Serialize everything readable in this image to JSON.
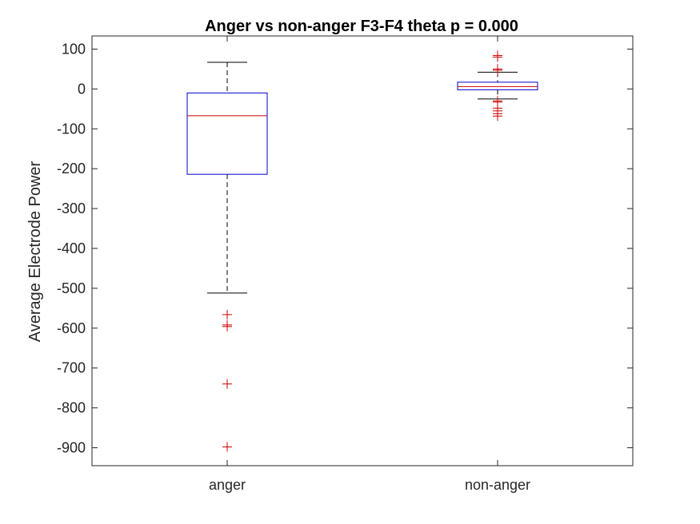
{
  "chart_data": {
    "type": "box",
    "title": "Anger vs non-anger F3-F4 theta p = 0.000",
    "xlabel": "",
    "ylabel": "Average Electrode Power",
    "ylim": [
      -945,
      133
    ],
    "yticks": [
      100,
      0,
      -100,
      -200,
      -300,
      -400,
      -500,
      -600,
      -700,
      -800,
      -900
    ],
    "grid": false,
    "categories": [
      "anger",
      "non-anger"
    ],
    "boxes": [
      {
        "category": "anger",
        "whisker_high": 67,
        "q3": -10,
        "median": -67,
        "q1": -214,
        "whisker_low": -512,
        "outliers": [
          -566,
          -592,
          -596,
          -740,
          -898
        ]
      },
      {
        "category": "non-anger",
        "whisker_high": 42,
        "q3": 17,
        "median": 6,
        "q1": -2,
        "whisker_low": -25,
        "outliers": [
          84,
          80,
          50,
          47,
          -30,
          -33,
          -48,
          -55,
          -62,
          -68
        ]
      }
    ],
    "colors": {
      "box": "#0000cc",
      "median": "#cc0000",
      "whisker": "#000000",
      "outlier": "#cc0000",
      "axis": "#262626"
    }
  }
}
